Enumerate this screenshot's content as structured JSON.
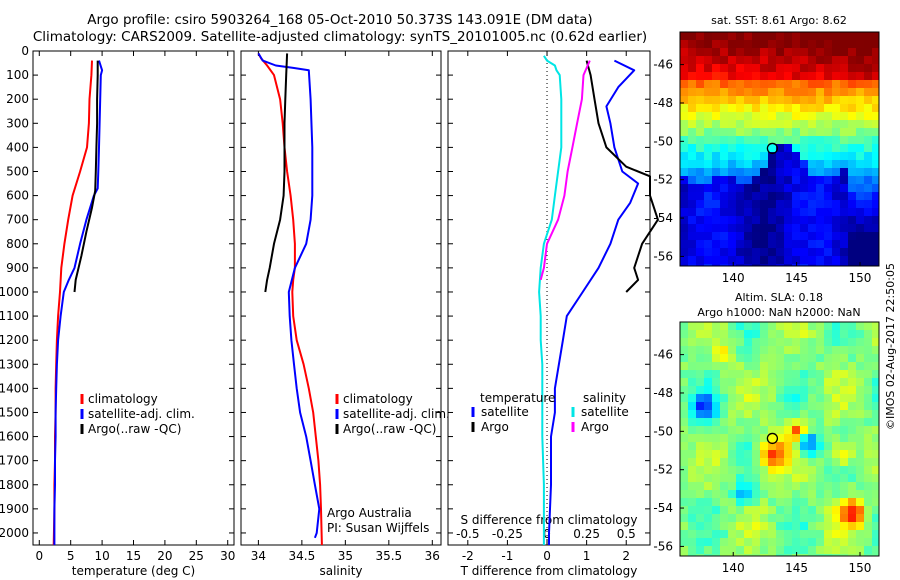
{
  "title_line1": "Argo profile: csiro 5903264_168 05-Oct-2010 50.373S 143.091E (DM data)",
  "title_line2": "Climatology: CARS2009. Satellite-adjusted climatology: synTS_20101005.nc (0.62d earlier)",
  "stamp": "©IMOS 02-Aug-2017 22:50:05",
  "colors": {
    "climatology": "#ff0000",
    "satellite": "#0000ff",
    "argo": "#000000",
    "salinity_sat": "#00e5e5",
    "salinity_argo": "#ff00ff"
  },
  "chart_data": [
    {
      "type": "line",
      "name": "temperature",
      "xlabel": "temperature (deg C)",
      "xlim": [
        -1,
        31
      ],
      "ylim": [
        0,
        2050
      ],
      "xticks": [
        0,
        5,
        10,
        15,
        20,
        25,
        30
      ],
      "yticks": [
        0,
        100,
        200,
        300,
        400,
        500,
        600,
        700,
        800,
        900,
        1000,
        1100,
        1200,
        1300,
        1400,
        1500,
        1600,
        1700,
        1800,
        1900,
        2000
      ],
      "legend": [
        "climatology",
        "satellite-adj. clim.",
        "Argo(..raw -QC)"
      ],
      "series": [
        {
          "name": "climatology",
          "color": "#ff0000",
          "points": [
            [
              8.4,
              40
            ],
            [
              8.3,
              100
            ],
            [
              8.0,
              200
            ],
            [
              7.9,
              300
            ],
            [
              7.6,
              400
            ],
            [
              6.5,
              500
            ],
            [
              5.3,
              600
            ],
            [
              4.6,
              700
            ],
            [
              4.0,
              800
            ],
            [
              3.5,
              900
            ],
            [
              3.3,
              1000
            ],
            [
              3.0,
              1100
            ],
            [
              2.8,
              1200
            ],
            [
              2.7,
              1300
            ],
            [
              2.6,
              1400
            ],
            [
              2.6,
              1500
            ],
            [
              2.5,
              1600
            ],
            [
              2.5,
              1700
            ],
            [
              2.4,
              1800
            ],
            [
              2.4,
              1900
            ],
            [
              2.3,
              2050
            ]
          ]
        },
        {
          "name": "satellite-adj. clim.",
          "color": "#0000ff",
          "points": [
            [
              9.5,
              40
            ],
            [
              10.0,
              80
            ],
            [
              9.8,
              100
            ],
            [
              9.7,
              200
            ],
            [
              9.6,
              300
            ],
            [
              9.5,
              400
            ],
            [
              9.4,
              500
            ],
            [
              9.3,
              570
            ],
            [
              8.7,
              600
            ],
            [
              7.5,
              700
            ],
            [
              6.5,
              800
            ],
            [
              5.6,
              900
            ],
            [
              4.7,
              950
            ],
            [
              3.9,
              1000
            ],
            [
              3.4,
              1100
            ],
            [
              3.0,
              1200
            ],
            [
              2.8,
              1300
            ],
            [
              2.7,
              1400
            ],
            [
              2.6,
              1500
            ],
            [
              2.6,
              1600
            ],
            [
              2.5,
              1700
            ],
            [
              2.5,
              1800
            ],
            [
              2.4,
              1900
            ],
            [
              2.4,
              2050
            ]
          ]
        },
        {
          "name": "Argo(..raw -QC)",
          "color": "#000000",
          "points": [
            [
              9.3,
              40
            ],
            [
              9.3,
              100
            ],
            [
              9.2,
              200
            ],
            [
              9.2,
              300
            ],
            [
              9.1,
              400
            ],
            [
              9.0,
              500
            ],
            [
              8.9,
              580
            ],
            [
              8.4,
              650
            ],
            [
              7.5,
              750
            ],
            [
              6.7,
              850
            ],
            [
              5.8,
              950
            ],
            [
              5.6,
              1000
            ]
          ]
        }
      ]
    },
    {
      "type": "line",
      "name": "salinity",
      "xlabel": "salinity",
      "xlim": [
        33.8,
        36.1
      ],
      "ylim": [
        0,
        2050
      ],
      "xticks": [
        34,
        34.5,
        35,
        35.5,
        36
      ],
      "legend": [
        "climatology",
        "satellite-adj. clim.",
        "Argo(..raw -QC)"
      ],
      "annotation": [
        "Argo Australia",
        "PI: Susan Wijffels"
      ],
      "series": [
        {
          "name": "climatology",
          "color": "#ff0000",
          "points": [
            [
              34.0,
              10
            ],
            [
              34.03,
              30
            ],
            [
              34.1,
              60
            ],
            [
              34.18,
              100
            ],
            [
              34.25,
              200
            ],
            [
              34.28,
              300
            ],
            [
              34.3,
              400
            ],
            [
              34.33,
              500
            ],
            [
              34.37,
              600
            ],
            [
              34.4,
              700
            ],
            [
              34.42,
              800
            ],
            [
              34.42,
              900
            ],
            [
              34.4,
              950
            ],
            [
              34.39,
              1000
            ],
            [
              34.4,
              1100
            ],
            [
              34.44,
              1200
            ],
            [
              34.52,
              1300
            ],
            [
              34.58,
              1400
            ],
            [
              34.63,
              1500
            ],
            [
              34.66,
              1600
            ],
            [
              34.69,
              1700
            ],
            [
              34.71,
              1800
            ],
            [
              34.72,
              1900
            ],
            [
              34.73,
              2050
            ]
          ]
        },
        {
          "name": "satellite-adj. clim.",
          "color": "#0000ff",
          "points": [
            [
              34.0,
              10
            ],
            [
              34.05,
              40
            ],
            [
              34.2,
              60
            ],
            [
              34.4,
              70
            ],
            [
              34.58,
              80
            ],
            [
              34.6,
              200
            ],
            [
              34.62,
              400
            ],
            [
              34.62,
              600
            ],
            [
              34.6,
              700
            ],
            [
              34.55,
              800
            ],
            [
              34.42,
              900
            ],
            [
              34.35,
              1000
            ],
            [
              34.36,
              1100
            ],
            [
              34.38,
              1200
            ],
            [
              34.41,
              1300
            ],
            [
              34.44,
              1400
            ],
            [
              34.48,
              1500
            ],
            [
              34.55,
              1600
            ],
            [
              34.6,
              1700
            ],
            [
              34.65,
              1800
            ],
            [
              34.7,
              1900
            ],
            [
              34.67,
              2000
            ],
            [
              34.65,
              2020
            ]
          ]
        },
        {
          "name": "Argo(..raw -QC)",
          "color": "#000000",
          "points": [
            [
              34.33,
              10
            ],
            [
              34.32,
              100
            ],
            [
              34.31,
              200
            ],
            [
              34.3,
              300
            ],
            [
              34.3,
              400
            ],
            [
              34.3,
              500
            ],
            [
              34.29,
              600
            ],
            [
              34.25,
              700
            ],
            [
              34.18,
              800
            ],
            [
              34.13,
              900
            ],
            [
              34.1,
              950
            ],
            [
              34.08,
              1000
            ]
          ]
        }
      ]
    },
    {
      "type": "line",
      "name": "difference",
      "xlabel": "T difference from climatology",
      "xlabel_top": "S difference from climatology",
      "xlim": [
        -2.5,
        2.6
      ],
      "ylim": [
        0,
        2050
      ],
      "xticks": [
        -2,
        -1,
        0,
        1,
        2
      ],
      "xticks_top": [
        {
          "v": -0.5,
          "label": "-0.5"
        },
        {
          "v": -0.25,
          "label": "-0.25"
        },
        {
          "v": 0,
          "label": "0"
        },
        {
          "v": 0.25,
          "label": "0.25"
        },
        {
          "v": 0.5,
          "label": "0.5"
        }
      ],
      "s_scale": 4,
      "legend_titles": [
        "temperature",
        "salinity"
      ],
      "legend": [
        "satellite",
        "Argo",
        "satellite",
        "Argo"
      ],
      "series": [
        {
          "name": "satellite",
          "kind": "T",
          "color": "#0000ff",
          "points": [
            [
              1.7,
              40
            ],
            [
              2.2,
              80
            ],
            [
              1.8,
              150
            ],
            [
              1.5,
              230
            ],
            [
              1.6,
              300
            ],
            [
              1.7,
              400
            ],
            [
              1.9,
              500
            ],
            [
              2.3,
              550
            ],
            [
              2.1,
              630
            ],
            [
              1.8,
              700
            ],
            [
              1.6,
              800
            ],
            [
              1.3,
              900
            ],
            [
              0.9,
              1000
            ],
            [
              0.5,
              1100
            ],
            [
              0.4,
              1200
            ],
            [
              0.3,
              1300
            ],
            [
              0.2,
              1400
            ],
            [
              0.2,
              1500
            ],
            [
              0.1,
              1600
            ],
            [
              0.1,
              1800
            ],
            [
              0.05,
              2000
            ],
            [
              0.05,
              2050
            ]
          ]
        },
        {
          "name": "Argo",
          "kind": "T",
          "color": "#000000",
          "points": [
            [
              1.0,
              40
            ],
            [
              1.1,
              100
            ],
            [
              1.2,
              200
            ],
            [
              1.3,
              300
            ],
            [
              1.5,
              400
            ],
            [
              2.0,
              480
            ],
            [
              2.6,
              520
            ],
            [
              2.6,
              600
            ],
            [
              2.8,
              700
            ],
            [
              2.4,
              800
            ],
            [
              2.2,
              900
            ],
            [
              2.3,
              950
            ],
            [
              2.0,
              1000
            ]
          ]
        },
        {
          "name": "satellite",
          "kind": "S",
          "color": "#00e5e5",
          "points": [
            [
              -0.02,
              20
            ],
            [
              0.0,
              40
            ],
            [
              0.05,
              60
            ],
            [
              0.06,
              80
            ],
            [
              0.08,
              100
            ],
            [
              0.09,
              200
            ],
            [
              0.09,
              400
            ],
            [
              0.05,
              600
            ],
            [
              0.03,
              700
            ],
            [
              -0.02,
              800
            ],
            [
              -0.04,
              900
            ],
            [
              -0.05,
              1000
            ],
            [
              -0.04,
              1100
            ],
            [
              -0.04,
              1200
            ],
            [
              -0.03,
              1300
            ],
            [
              -0.03,
              1400
            ],
            [
              -0.03,
              1600
            ],
            [
              -0.02,
              1800
            ],
            [
              -0.02,
              2000
            ],
            [
              -0.02,
              2050
            ]
          ]
        },
        {
          "name": "Argo",
          "kind": "S",
          "color": "#ff00ff",
          "points": [
            [
              0.27,
              40
            ],
            [
              0.23,
              100
            ],
            [
              0.22,
              200
            ],
            [
              0.19,
              300
            ],
            [
              0.16,
              400
            ],
            [
              0.13,
              500
            ],
            [
              0.11,
              600
            ],
            [
              0.07,
              700
            ],
            [
              0.0,
              800
            ],
            [
              -0.02,
              900
            ],
            [
              -0.04,
              950
            ]
          ]
        }
      ]
    },
    {
      "type": "heatmap",
      "name": "sst map",
      "title": "sat. SST: 8.61  Argo: 8.62",
      "xticks": [
        140,
        145,
        150
      ],
      "yticks": [
        -46,
        -48,
        -50,
        -52,
        -54,
        -56
      ],
      "xlim": [
        135.8,
        151.5
      ],
      "ylim": [
        -56.5,
        -44.3
      ],
      "marker": [
        143.09,
        -50.37
      ]
    },
    {
      "type": "heatmap",
      "name": "sla map",
      "title": [
        "Altim. SLA: 0.18",
        "Argo h1000: NaN h2000: NaN"
      ],
      "xticks": [
        140,
        145,
        150
      ],
      "yticks": [
        -46,
        -48,
        -50,
        -52,
        -54,
        -56
      ],
      "xlim": [
        135.8,
        151.5
      ],
      "ylim": [
        -56.5,
        -44.3
      ],
      "marker": [
        143.09,
        -50.37
      ]
    }
  ]
}
